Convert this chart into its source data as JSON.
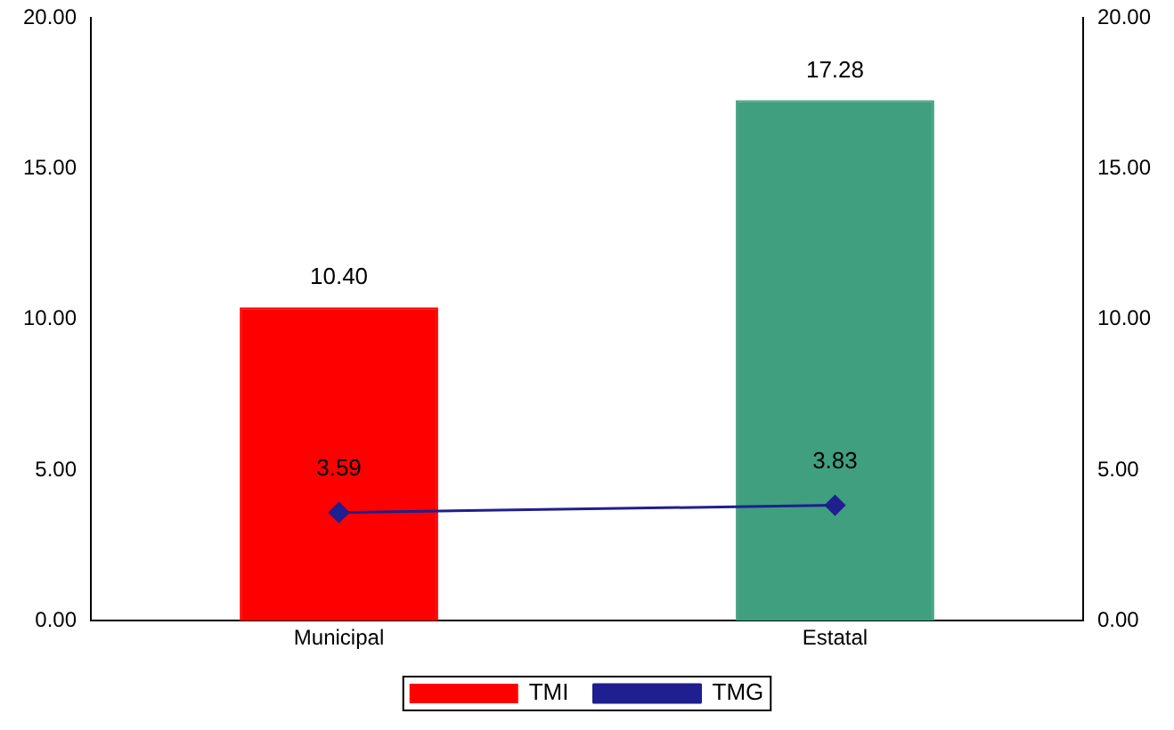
{
  "chart_data": {
    "type": "bar",
    "categories": [
      "Municipal",
      "Estatal"
    ],
    "series": [
      {
        "name": "TMI",
        "colors": [
          "#ff0000",
          "#3f9f7f"
        ],
        "values": [
          10.4,
          17.28
        ],
        "value_labels": [
          "10.40",
          "17.28"
        ]
      },
      {
        "name": "TMG",
        "type": "line",
        "color": "#1f1f8f",
        "values": [
          3.59,
          3.83
        ],
        "value_labels": [
          "3.59",
          "3.83"
        ],
        "marker": "diamond"
      }
    ],
    "ylim": [
      0,
      20
    ],
    "yticks": [
      {
        "value": 0,
        "label": "0.00"
      },
      {
        "value": 5,
        "label": "5.00"
      },
      {
        "value": 10,
        "label": "10.00"
      },
      {
        "value": 15,
        "label": "15.00"
      },
      {
        "value": 20,
        "label": "20.00"
      }
    ],
    "y2lim": [
      0,
      20
    ],
    "y2ticks": [
      {
        "value": 0,
        "label": "0.00"
      },
      {
        "value": 5,
        "label": "5.00"
      },
      {
        "value": 10,
        "label": "10.00"
      },
      {
        "value": 15,
        "label": "15.00"
      },
      {
        "value": 20,
        "label": "20.00"
      }
    ],
    "legend": "bottom",
    "grid": false
  }
}
